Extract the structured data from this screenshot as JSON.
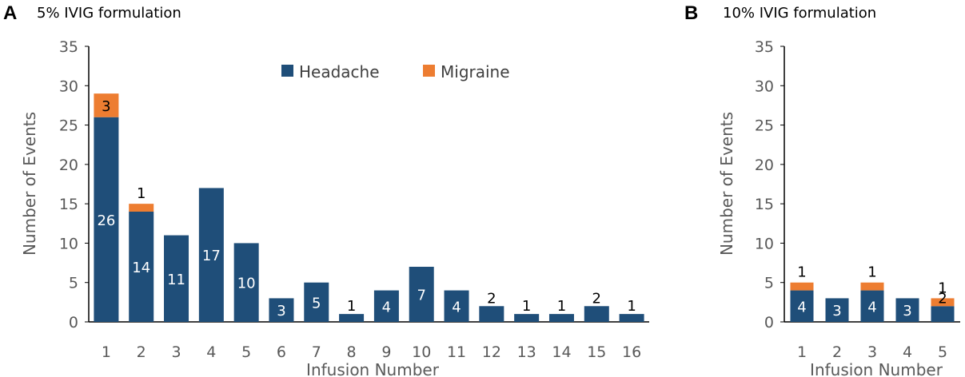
{
  "colors": {
    "headache": "#1f4e79",
    "migraine": "#ed7d31",
    "axis": "#000000"
  },
  "chart_data": [
    {
      "panel": "A",
      "title": "5% IVIG formulation",
      "type": "bar",
      "stacked": true,
      "xlabel": "Infusion Number",
      "ylabel": "Number of Events",
      "ylim": [
        0,
        35
      ],
      "yticks": [
        0,
        5,
        10,
        15,
        20,
        25,
        30,
        35
      ],
      "categories": [
        "1",
        "2",
        "3",
        "4",
        "5",
        "6",
        "7",
        "8",
        "9",
        "10",
        "11",
        "12",
        "13",
        "14",
        "15",
        "16"
      ],
      "series": [
        {
          "name": "Headache",
          "values": [
            26,
            14,
            11,
            17,
            10,
            3,
            5,
            1,
            4,
            7,
            4,
            2,
            1,
            1,
            2,
            1
          ]
        },
        {
          "name": "Migraine",
          "values": [
            3,
            1,
            0,
            0,
            0,
            0,
            0,
            0,
            0,
            0,
            0,
            0,
            0,
            0,
            0,
            0
          ]
        }
      ],
      "legend": "top-center",
      "grid": false
    },
    {
      "panel": "B",
      "title": "10% IVIG formulation",
      "type": "bar",
      "stacked": true,
      "xlabel": "Infusion Number",
      "ylabel": "Number of Events",
      "ylim": [
        0,
        35
      ],
      "yticks": [
        0,
        5,
        10,
        15,
        20,
        25,
        30,
        35
      ],
      "categories": [
        "1",
        "2",
        "3",
        "4",
        "5"
      ],
      "series": [
        {
          "name": "Headache",
          "values": [
            4,
            3,
            4,
            3,
            2
          ]
        },
        {
          "name": "Migraine",
          "values": [
            1,
            0,
            1,
            0,
            1
          ]
        }
      ],
      "legend": "none",
      "grid": false
    }
  ]
}
